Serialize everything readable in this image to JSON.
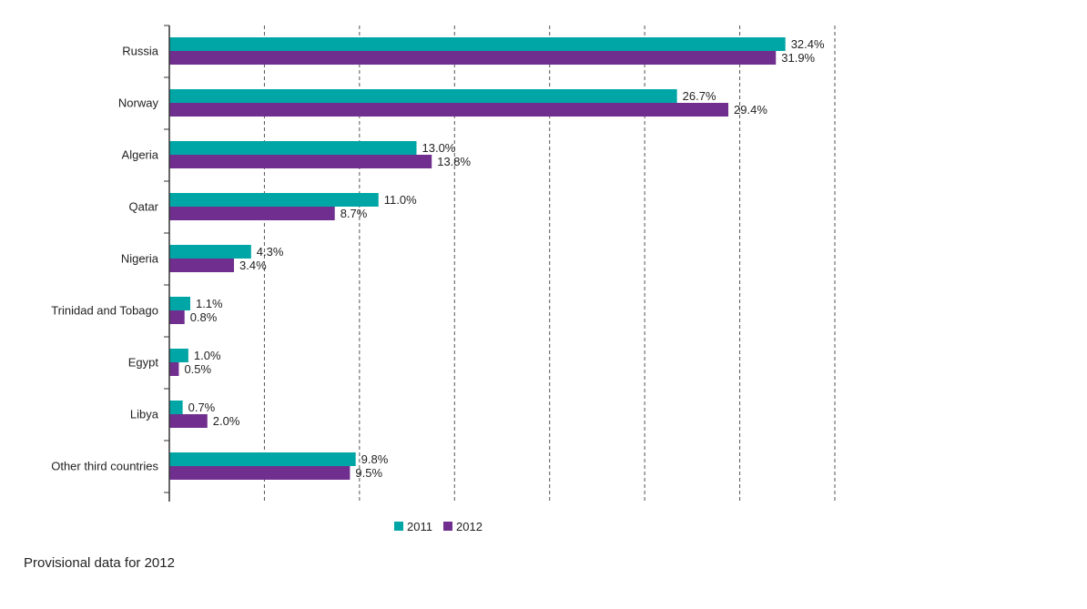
{
  "chart_data": {
    "type": "bar",
    "orientation": "horizontal",
    "categories": [
      "Russia",
      "Norway",
      "Algeria",
      "Qatar",
      "Nigeria",
      "Trinidad and Tobago",
      "Egypt",
      "Libya",
      "Other third countries"
    ],
    "series": [
      {
        "name": "2011",
        "color": "#00a6a6",
        "values": [
          32.4,
          26.7,
          13.0,
          11.0,
          4.3,
          1.1,
          1.0,
          0.7,
          9.8
        ],
        "labels": [
          "32.4%",
          "26.7%",
          "13.0%",
          "11.0%",
          "4.3%",
          "1.1%",
          "1.0%",
          "0.7%",
          "9.8%"
        ]
      },
      {
        "name": "2012",
        "color": "#702f8f",
        "values": [
          31.9,
          29.4,
          13.8,
          8.7,
          3.4,
          0.8,
          0.5,
          2.0,
          9.5
        ],
        "labels": [
          "31.9%",
          "29.4%",
          "13.8%",
          "8.7%",
          "3.4%",
          "0.8%",
          "0.5%",
          "2.0%",
          "9.5%"
        ]
      }
    ],
    "xlim": [
      0,
      35
    ],
    "grid": true,
    "legend": "bottom-center"
  },
  "footnote": "Provisional data for 2012"
}
